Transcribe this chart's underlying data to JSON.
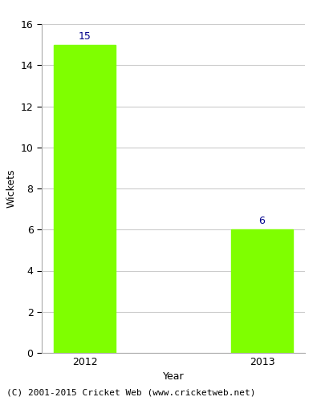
{
  "categories": [
    "2012",
    "2013"
  ],
  "values": [
    15,
    6
  ],
  "bar_color": "#7fff00",
  "bar_edgecolor": "#7fff00",
  "title": "",
  "xlabel": "Year",
  "ylabel": "Wickets",
  "ylim": [
    0,
    16
  ],
  "yticks": [
    0,
    2,
    4,
    6,
    8,
    10,
    12,
    14,
    16
  ],
  "label_color": "#00008b",
  "label_fontsize": 9,
  "axis_label_fontsize": 9,
  "tick_fontsize": 9,
  "footer_text": "(C) 2001-2015 Cricket Web (www.cricketweb.net)",
  "footer_fontsize": 8,
  "background_color": "#ffffff",
  "grid_color": "#cccccc",
  "bar_width": 0.35
}
